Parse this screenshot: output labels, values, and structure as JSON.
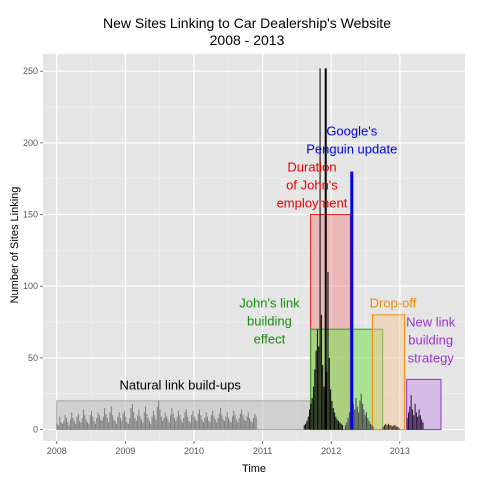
{
  "chart_data": {
    "type": "bar",
    "title": "New Sites Linking to Car Dealership's Website",
    "subtitle": "2008 - 2013",
    "xlabel": "Time",
    "ylabel": "Number of Sites Linking",
    "xlim": [
      2007.8,
      2013.95
    ],
    "ylim": [
      -8,
      262
    ],
    "grid": true,
    "x_ticks": [
      {
        "value": 2008,
        "label": "2008"
      },
      {
        "value": 2009,
        "label": "2009"
      },
      {
        "value": 2010,
        "label": "2010"
      },
      {
        "value": 2011,
        "label": "2011"
      },
      {
        "value": 2012,
        "label": "2012"
      },
      {
        "value": 2013,
        "label": "2013"
      }
    ],
    "y_ticks": [
      {
        "value": 0,
        "label": "0"
      },
      {
        "value": 50,
        "label": "50"
      },
      {
        "value": 100,
        "label": "100"
      },
      {
        "value": 150,
        "label": "150"
      },
      {
        "value": 200,
        "label": "200"
      },
      {
        "value": 250,
        "label": "250"
      }
    ],
    "bar_width": 0.0192,
    "series": [
      {
        "x_start": 2008.0,
        "values": [
          4,
          3,
          9,
          5,
          4,
          6,
          10,
          8,
          5,
          3,
          7,
          12,
          8,
          6,
          4,
          9,
          11,
          6,
          5,
          8,
          14,
          10,
          7,
          5,
          4,
          10,
          13,
          9,
          6,
          4,
          8,
          12,
          10,
          7,
          6,
          9,
          15,
          11,
          8,
          5,
          12,
          16,
          10,
          7,
          6,
          4,
          9,
          12,
          8,
          6,
          11,
          13,
          9,
          5,
          4,
          8,
          15,
          18,
          12,
          8,
          6,
          10,
          14,
          9,
          7,
          5,
          12,
          16,
          11,
          8,
          6,
          4,
          9,
          13,
          10,
          7,
          16,
          20,
          14,
          9,
          6,
          8,
          12,
          9,
          7,
          5,
          10,
          15,
          11,
          8,
          6,
          9,
          13,
          10,
          7,
          5,
          8,
          12,
          14,
          9,
          6,
          5,
          10,
          13,
          9,
          7,
          6,
          11,
          14,
          10,
          7,
          5,
          8,
          12,
          9,
          6,
          5,
          10,
          13,
          9,
          7,
          5,
          8,
          11,
          15,
          10,
          7,
          6,
          9,
          12,
          8,
          6,
          5,
          9,
          13,
          10,
          7,
          5,
          8,
          11,
          14,
          10,
          7,
          6,
          9,
          12,
          8,
          6,
          5,
          8,
          11,
          9
        ],
        "color": "#7f7f7f"
      },
      {
        "x_start": 2011.6,
        "values": [
          3,
          4,
          6,
          9,
          14,
          18,
          22,
          30,
          42,
          55,
          70,
          58,
          252,
          80,
          45,
          30,
          22,
          40,
          110,
          50,
          28,
          20,
          15,
          12,
          9,
          7,
          6,
          5,
          4,
          3
        ],
        "color": "#000000"
      },
      {
        "x_start": 2012.2,
        "values": [
          3,
          5,
          8,
          12,
          15,
          10,
          18,
          14,
          22,
          16,
          12,
          20,
          25,
          18,
          14,
          10,
          12,
          8,
          6,
          4,
          3,
          2
        ],
        "color": "#4a4a4a"
      },
      {
        "x_start": 2012.75,
        "values": [
          2,
          3,
          4,
          3,
          4,
          3,
          3,
          2,
          3,
          3,
          2,
          2,
          1
        ],
        "color": "#3a2a18"
      },
      {
        "x_start": 2013.1,
        "values": [
          8,
          12,
          16,
          24,
          14,
          10,
          18,
          12,
          9,
          14,
          10,
          7,
          5
        ],
        "color": "#2b0f36"
      }
    ],
    "spike_black": {
      "x": 2011.92,
      "y": 252
    },
    "spike_blue": {
      "x": 2012.3,
      "y": 180,
      "color": "#0000ee"
    },
    "regions": [
      {
        "name": "natural",
        "x0": 2008.0,
        "x1": 2011.75,
        "y0": 0,
        "y1": 20,
        "fill": "#bfbfbf",
        "stroke": "#a6a6a6",
        "opacity": 0.55
      },
      {
        "name": "employment",
        "x0": 2011.7,
        "x1": 2012.28,
        "y0": 0,
        "y1": 150,
        "fill": "#f08080",
        "stroke": "#e02020",
        "opacity": 0.45
      },
      {
        "name": "link-building",
        "x0": 2011.7,
        "x1": 2012.75,
        "y0": 0,
        "y1": 70,
        "fill": "#7fe05a",
        "stroke": "#2a9d1f",
        "opacity": 0.6
      },
      {
        "name": "drop-off",
        "x0": 2012.6,
        "x1": 2013.07,
        "y0": 0,
        "y1": 80,
        "fill": "#f6c89a",
        "stroke": "#f08a00",
        "opacity": 0.5
      },
      {
        "name": "new-strategy",
        "x0": 2013.1,
        "x1": 2013.6,
        "y0": 0,
        "y1": 35,
        "fill": "#c89be8",
        "stroke": "#9b30d8",
        "opacity": 0.55
      }
    ],
    "annotations": [
      {
        "name": "natural",
        "lines": [
          "Natural link build-ups"
        ],
        "x": 2009.8,
        "y": 28,
        "color": "#000000"
      },
      {
        "name": "employment",
        "lines": [
          "Duration",
          "of John's",
          "employment"
        ],
        "x": 2011.72,
        "y": 180,
        "color": "#ee0000"
      },
      {
        "name": "link-building",
        "lines": [
          "John's link",
          "building",
          "effect"
        ],
        "x": 2011.1,
        "y": 85,
        "color": "#1a8a10"
      },
      {
        "name": "penguin",
        "lines": [
          "Google's",
          "Penguin update"
        ],
        "x": 2012.3,
        "y": 205,
        "color": "#0000ee"
      },
      {
        "name": "drop-off",
        "lines": [
          "Drop-off"
        ],
        "x": 2012.9,
        "y": 85,
        "color": "#f08a00"
      },
      {
        "name": "new-strategy",
        "lines": [
          "New link",
          "building",
          "strategy"
        ],
        "x": 2013.45,
        "y": 72,
        "color": "#9b30d8"
      }
    ]
  }
}
